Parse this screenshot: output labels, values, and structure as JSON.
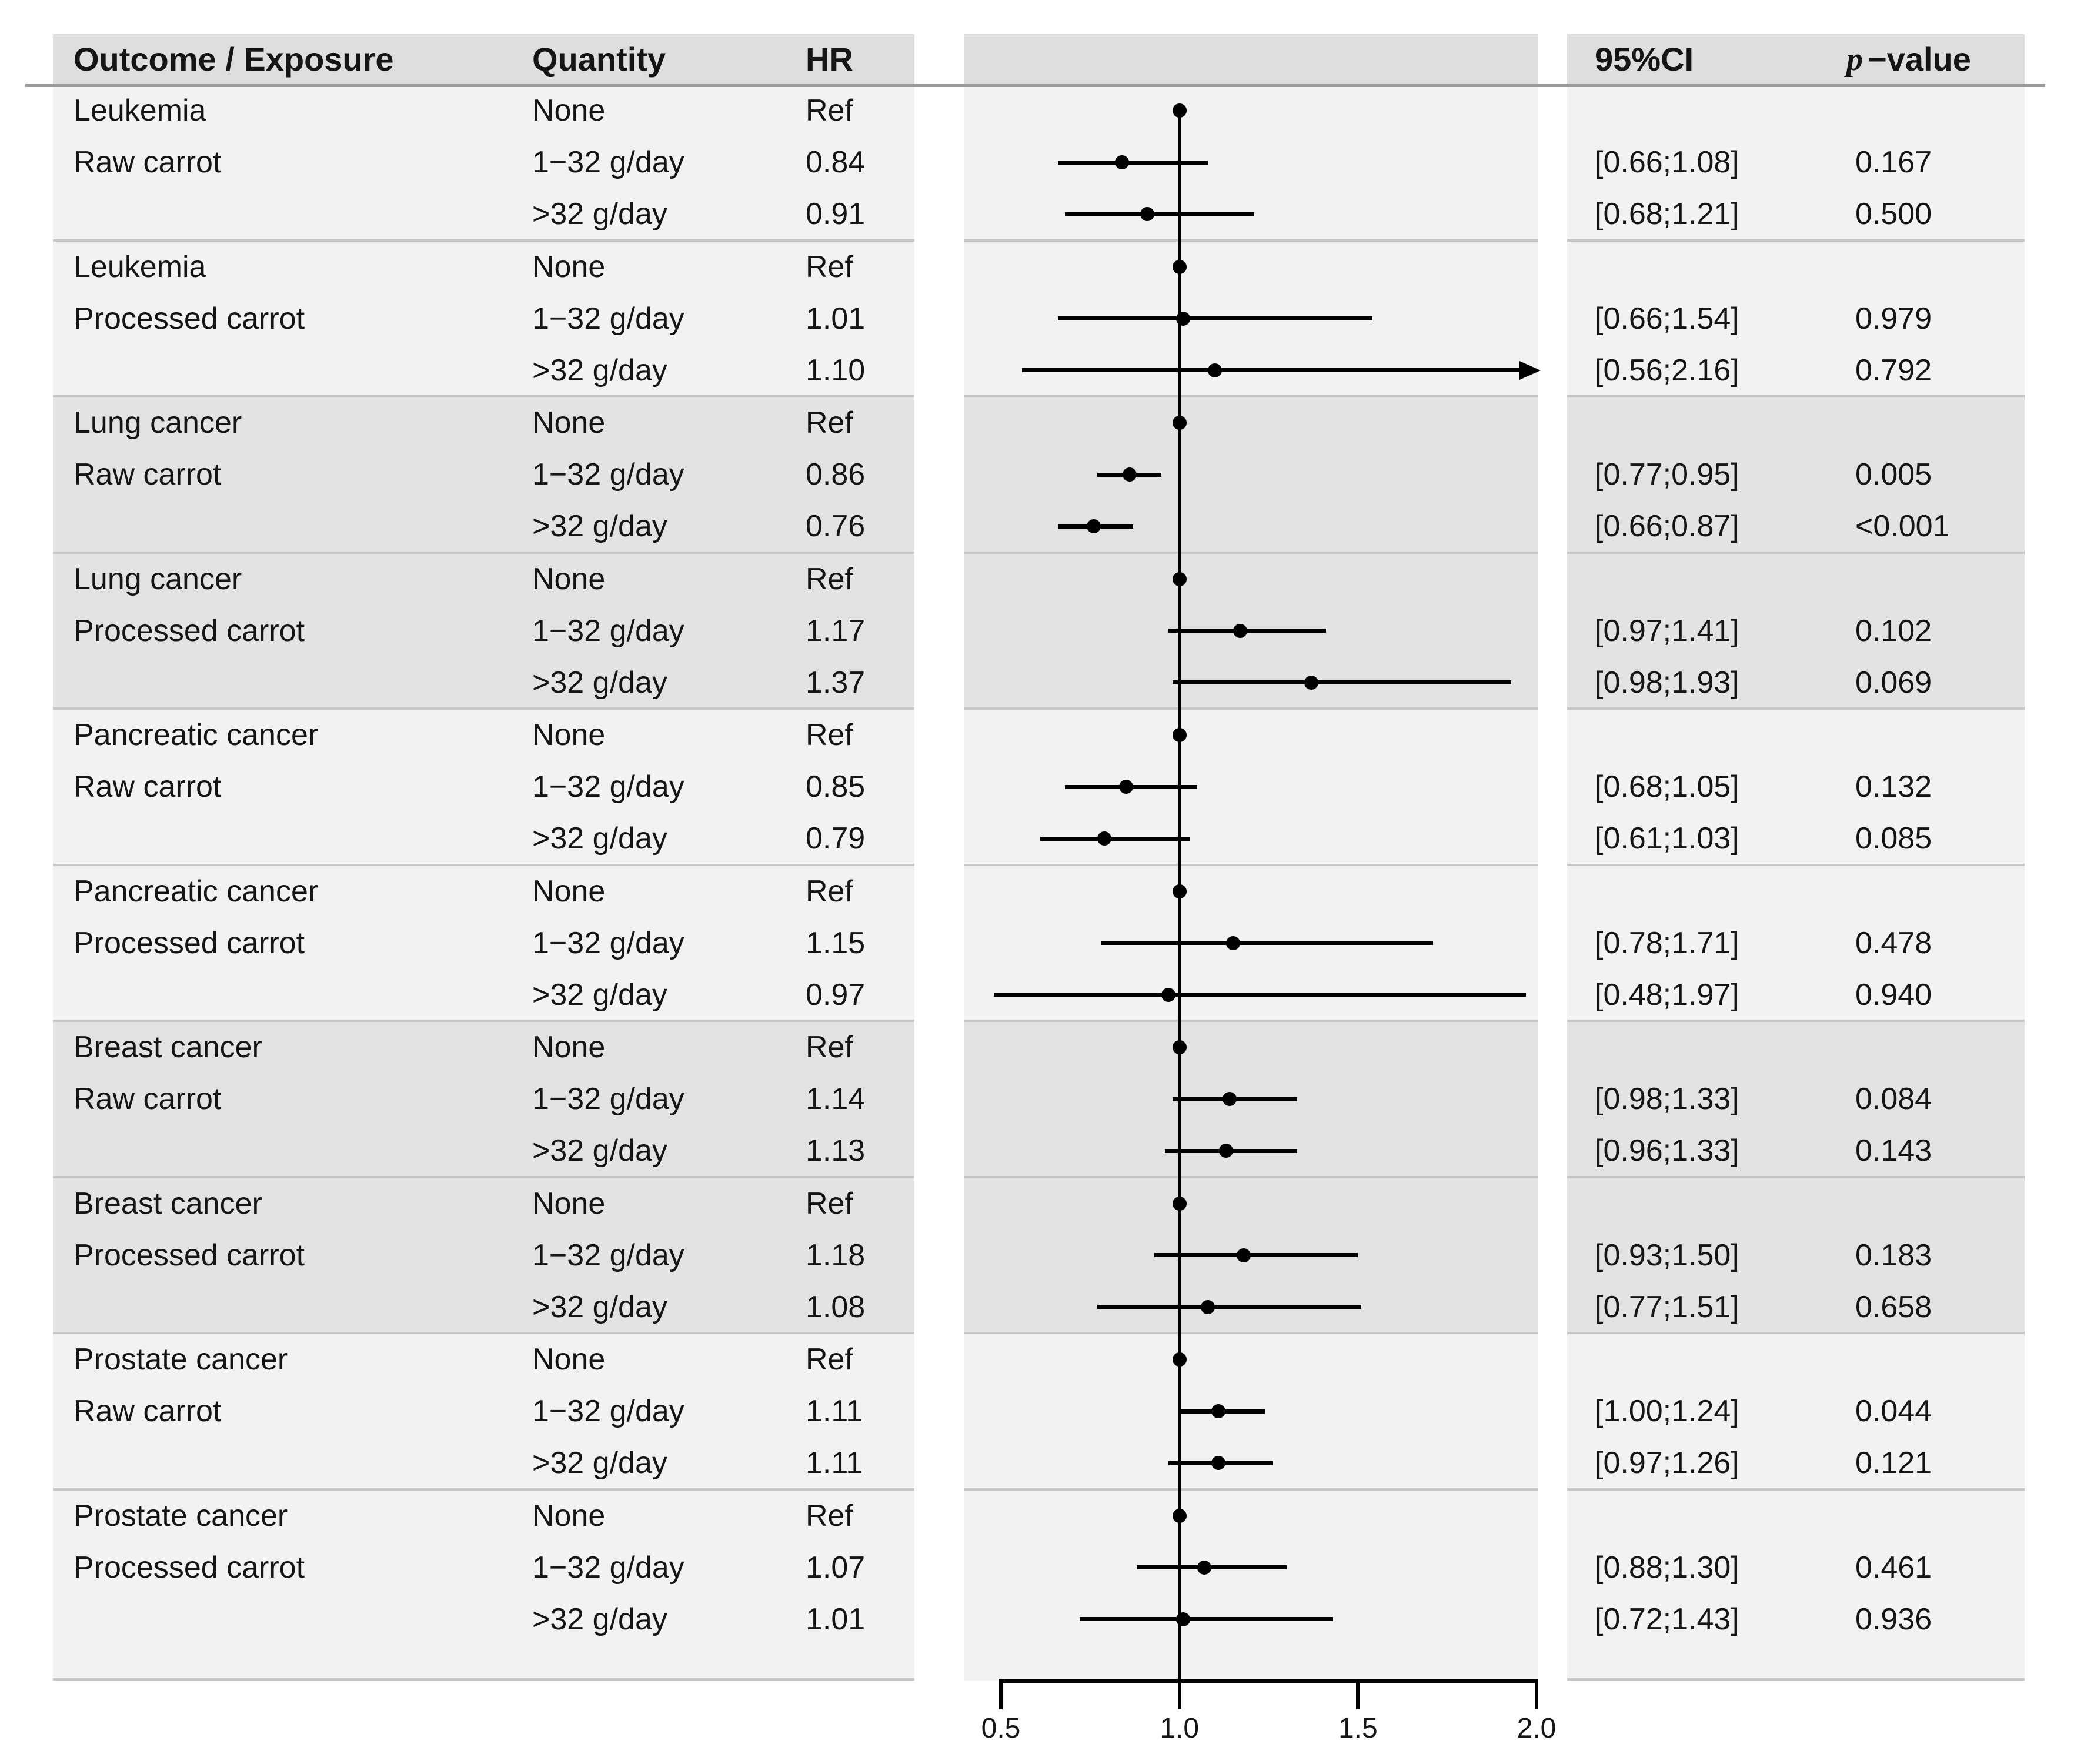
{
  "header": {
    "outcome_exposure": "Outcome / Exposure",
    "quantity": "Quantity",
    "hr": "HR",
    "ci": "95%CI",
    "p_prefix": "p",
    "p_suffix": "−value"
  },
  "colors": {
    "page_bg": "#ffffff",
    "header_band": "#dedede",
    "band_light": "#f2f2f2",
    "band_dark": "#e3e3e3",
    "separator": "#c6c6c6",
    "header_rule": "#9a9a9a",
    "marker": "#000000",
    "text": "#151515"
  },
  "chart_data": {
    "type": "forest",
    "title": "",
    "x_axis": {
      "min": 0.5,
      "max": 2.0,
      "ticks": [
        0.5,
        1.0,
        1.5,
        2.0
      ],
      "tick_labels": [
        "0.5",
        "1.0",
        "1.5",
        "2.0"
      ],
      "reference_line": 1.0
    },
    "columns": [
      "Outcome / Exposure",
      "Quantity",
      "HR",
      "95%CI",
      "p-value"
    ],
    "groups": [
      {
        "outcome": "Leukemia",
        "exposure": "Raw carrot",
        "rows": [
          {
            "quantity": "None",
            "hr_label": "Ref",
            "estimate": 1.0,
            "is_reference": true
          },
          {
            "quantity": "1−32 g/day",
            "hr_label": "0.84",
            "estimate": 0.84,
            "ci_low": 0.66,
            "ci_high": 1.08,
            "ci_label": "[0.66;1.08]",
            "p_label": "0.167"
          },
          {
            "quantity": ">32 g/day",
            "hr_label": "0.91",
            "estimate": 0.91,
            "ci_low": 0.68,
            "ci_high": 1.21,
            "ci_label": "[0.68;1.21]",
            "p_label": "0.500"
          }
        ]
      },
      {
        "outcome": "Leukemia",
        "exposure": "Processed carrot",
        "rows": [
          {
            "quantity": "None",
            "hr_label": "Ref",
            "estimate": 1.0,
            "is_reference": true
          },
          {
            "quantity": "1−32 g/day",
            "hr_label": "1.01",
            "estimate": 1.01,
            "ci_low": 0.66,
            "ci_high": 1.54,
            "ci_label": "[0.66;1.54]",
            "p_label": "0.979"
          },
          {
            "quantity": ">32 g/day",
            "hr_label": "1.10",
            "estimate": 1.1,
            "ci_low": 0.56,
            "ci_high": 2.16,
            "ci_label": "[0.56;2.16]",
            "p_label": "0.792"
          }
        ]
      },
      {
        "outcome": "Lung cancer",
        "exposure": "Raw carrot",
        "rows": [
          {
            "quantity": "None",
            "hr_label": "Ref",
            "estimate": 1.0,
            "is_reference": true
          },
          {
            "quantity": "1−32 g/day",
            "hr_label": "0.86",
            "estimate": 0.86,
            "ci_low": 0.77,
            "ci_high": 0.95,
            "ci_label": "[0.77;0.95]",
            "p_label": "0.005"
          },
          {
            "quantity": ">32 g/day",
            "hr_label": "0.76",
            "estimate": 0.76,
            "ci_low": 0.66,
            "ci_high": 0.87,
            "ci_label": "[0.66;0.87]",
            "p_label": "<0.001"
          }
        ]
      },
      {
        "outcome": "Lung cancer",
        "exposure": "Processed carrot",
        "rows": [
          {
            "quantity": "None",
            "hr_label": "Ref",
            "estimate": 1.0,
            "is_reference": true
          },
          {
            "quantity": "1−32 g/day",
            "hr_label": "1.17",
            "estimate": 1.17,
            "ci_low": 0.97,
            "ci_high": 1.41,
            "ci_label": "[0.97;1.41]",
            "p_label": "0.102"
          },
          {
            "quantity": ">32 g/day",
            "hr_label": "1.37",
            "estimate": 1.37,
            "ci_low": 0.98,
            "ci_high": 1.93,
            "ci_label": "[0.98;1.93]",
            "p_label": "0.069"
          }
        ]
      },
      {
        "outcome": "Pancreatic cancer",
        "exposure": "Raw carrot",
        "rows": [
          {
            "quantity": "None",
            "hr_label": "Ref",
            "estimate": 1.0,
            "is_reference": true
          },
          {
            "quantity": "1−32 g/day",
            "hr_label": "0.85",
            "estimate": 0.85,
            "ci_low": 0.68,
            "ci_high": 1.05,
            "ci_label": "[0.68;1.05]",
            "p_label": "0.132"
          },
          {
            "quantity": ">32 g/day",
            "hr_label": "0.79",
            "estimate": 0.79,
            "ci_low": 0.61,
            "ci_high": 1.03,
            "ci_label": "[0.61;1.03]",
            "p_label": "0.085"
          }
        ]
      },
      {
        "outcome": "Pancreatic cancer",
        "exposure": "Processed carrot",
        "rows": [
          {
            "quantity": "None",
            "hr_label": "Ref",
            "estimate": 1.0,
            "is_reference": true
          },
          {
            "quantity": "1−32 g/day",
            "hr_label": "1.15",
            "estimate": 1.15,
            "ci_low": 0.78,
            "ci_high": 1.71,
            "ci_label": "[0.78;1.71]",
            "p_label": "0.478"
          },
          {
            "quantity": ">32 g/day",
            "hr_label": "0.97",
            "estimate": 0.97,
            "ci_low": 0.48,
            "ci_high": 1.97,
            "ci_label": "[0.48;1.97]",
            "p_label": "0.940"
          }
        ]
      },
      {
        "outcome": "Breast cancer",
        "exposure": "Raw carrot",
        "rows": [
          {
            "quantity": "None",
            "hr_label": "Ref",
            "estimate": 1.0,
            "is_reference": true
          },
          {
            "quantity": "1−32 g/day",
            "hr_label": "1.14",
            "estimate": 1.14,
            "ci_low": 0.98,
            "ci_high": 1.33,
            "ci_label": "[0.98;1.33]",
            "p_label": "0.084"
          },
          {
            "quantity": ">32 g/day",
            "hr_label": "1.13",
            "estimate": 1.13,
            "ci_low": 0.96,
            "ci_high": 1.33,
            "ci_label": "[0.96;1.33]",
            "p_label": "0.143"
          }
        ]
      },
      {
        "outcome": "Breast cancer",
        "exposure": "Processed carrot",
        "rows": [
          {
            "quantity": "None",
            "hr_label": "Ref",
            "estimate": 1.0,
            "is_reference": true
          },
          {
            "quantity": "1−32 g/day",
            "hr_label": "1.18",
            "estimate": 1.18,
            "ci_low": 0.93,
            "ci_high": 1.5,
            "ci_label": "[0.93;1.50]",
            "p_label": "0.183"
          },
          {
            "quantity": ">32 g/day",
            "hr_label": "1.08",
            "estimate": 1.08,
            "ci_low": 0.77,
            "ci_high": 1.51,
            "ci_label": "[0.77;1.51]",
            "p_label": "0.658"
          }
        ]
      },
      {
        "outcome": "Prostate cancer",
        "exposure": "Raw carrot",
        "rows": [
          {
            "quantity": "None",
            "hr_label": "Ref",
            "estimate": 1.0,
            "is_reference": true
          },
          {
            "quantity": "1−32 g/day",
            "hr_label": "1.11",
            "estimate": 1.11,
            "ci_low": 1.0,
            "ci_high": 1.24,
            "ci_label": "[1.00;1.24]",
            "p_label": "0.044"
          },
          {
            "quantity": ">32 g/day",
            "hr_label": "1.11",
            "estimate": 1.11,
            "ci_low": 0.97,
            "ci_high": 1.26,
            "ci_label": "[0.97;1.26]",
            "p_label": "0.121"
          }
        ]
      },
      {
        "outcome": "Prostate cancer",
        "exposure": "Processed carrot",
        "rows": [
          {
            "quantity": "None",
            "hr_label": "Ref",
            "estimate": 1.0,
            "is_reference": true
          },
          {
            "quantity": "1−32 g/day",
            "hr_label": "1.07",
            "estimate": 1.07,
            "ci_low": 0.88,
            "ci_high": 1.3,
            "ci_label": "[0.88;1.30]",
            "p_label": "0.461"
          },
          {
            "quantity": ">32 g/day",
            "hr_label": "1.01",
            "estimate": 1.01,
            "ci_low": 0.72,
            "ci_high": 1.43,
            "ci_label": "[0.72;1.43]",
            "p_label": "0.936"
          }
        ]
      }
    ]
  }
}
